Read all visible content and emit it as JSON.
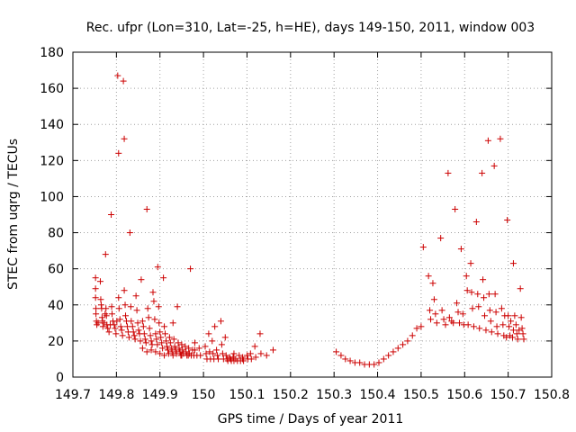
{
  "chart_data": {
    "type": "scatter",
    "title": "Rec. ufpr (Lon=310, Lat=-25, h=HE), days 149-150, 2011, window 003",
    "xlabel": "GPS time / Days of year 2011",
    "ylabel": "STEC from uqrg / TECUs",
    "xlim": [
      149.7,
      150.8
    ],
    "ylim": [
      0,
      180
    ],
    "xticks": [
      149.7,
      149.8,
      149.9,
      150,
      150.1,
      150.2,
      150.3,
      150.4,
      150.5,
      150.6,
      150.7,
      150.8
    ],
    "xtick_labels": [
      "149.7",
      "149.8",
      "149.9",
      "150",
      "150.1",
      "150.2",
      "150.3",
      "150.4",
      "150.5",
      "150.6",
      "150.7",
      "150.8"
    ],
    "yticks": [
      0,
      20,
      40,
      60,
      80,
      100,
      120,
      140,
      160,
      180
    ],
    "ytick_labels": [
      "0",
      "20",
      "40",
      "60",
      "80",
      "100",
      "120",
      "140",
      "160",
      "180"
    ],
    "grid": true,
    "marker": "+",
    "color": "#cc0000",
    "series": [
      {
        "name": "STEC",
        "points": [
          [
            149.752,
            55
          ],
          [
            149.752,
            49
          ],
          [
            149.752,
            44
          ],
          [
            149.753,
            38
          ],
          [
            149.753,
            35
          ],
          [
            149.754,
            31
          ],
          [
            149.755,
            29
          ],
          [
            149.758,
            30
          ],
          [
            149.763,
            53
          ],
          [
            149.764,
            43
          ],
          [
            149.765,
            40
          ],
          [
            149.766,
            38
          ],
          [
            149.767,
            33
          ],
          [
            149.768,
            31
          ],
          [
            149.769,
            28
          ],
          [
            149.772,
            30
          ],
          [
            149.774,
            35
          ],
          [
            149.775,
            68
          ],
          [
            149.776,
            38
          ],
          [
            149.777,
            34
          ],
          [
            149.778,
            29
          ],
          [
            149.78,
            27
          ],
          [
            149.783,
            25
          ],
          [
            149.786,
            29
          ],
          [
            149.788,
            90
          ],
          [
            149.789,
            39
          ],
          [
            149.79,
            35
          ],
          [
            149.792,
            31
          ],
          [
            149.795,
            29
          ],
          [
            149.797,
            27
          ],
          [
            149.799,
            24
          ],
          [
            149.801,
            31
          ],
          [
            149.803,
            167
          ],
          [
            149.805,
            124
          ],
          [
            149.805,
            44
          ],
          [
            149.806,
            38
          ],
          [
            149.808,
            32
          ],
          [
            149.81,
            28
          ],
          [
            149.812,
            26
          ],
          [
            149.814,
            23
          ],
          [
            149.816,
            164
          ],
          [
            149.818,
            132
          ],
          [
            149.818,
            48
          ],
          [
            149.82,
            40
          ],
          [
            149.821,
            34
          ],
          [
            149.823,
            31
          ],
          [
            149.825,
            28
          ],
          [
            149.827,
            25
          ],
          [
            149.829,
            22
          ],
          [
            149.831,
            80
          ],
          [
            149.833,
            39
          ],
          [
            149.834,
            31
          ],
          [
            149.837,
            28
          ],
          [
            149.839,
            25
          ],
          [
            149.841,
            23
          ],
          [
            149.843,
            21
          ],
          [
            149.845,
            45
          ],
          [
            149.847,
            37
          ],
          [
            149.849,
            30
          ],
          [
            149.851,
            26
          ],
          [
            149.853,
            24
          ],
          [
            149.855,
            20
          ],
          [
            149.857,
            54
          ],
          [
            149.86,
            31
          ],
          [
            149.862,
            28
          ],
          [
            149.864,
            24
          ],
          [
            149.866,
            21
          ],
          [
            149.868,
            19
          ],
          [
            149.87,
            93
          ],
          [
            149.872,
            38
          ],
          [
            149.874,
            33
          ],
          [
            149.876,
            27
          ],
          [
            149.878,
            23
          ],
          [
            149.88,
            20
          ],
          [
            149.882,
            18
          ],
          [
            149.884,
            47
          ],
          [
            149.886,
            42
          ],
          [
            149.888,
            32
          ],
          [
            149.89,
            24
          ],
          [
            149.892,
            21
          ],
          [
            149.894,
            18
          ],
          [
            149.895,
            61
          ],
          [
            149.897,
            39
          ],
          [
            149.898,
            30
          ],
          [
            149.9,
            25
          ],
          [
            149.902,
            22
          ],
          [
            149.904,
            19
          ],
          [
            149.906,
            16
          ],
          [
            149.908,
            55
          ],
          [
            149.91,
            28
          ],
          [
            149.912,
            24
          ],
          [
            149.914,
            20
          ],
          [
            149.916,
            17
          ],
          [
            149.918,
            15
          ],
          [
            149.92,
            13
          ],
          [
            149.922,
            22
          ],
          [
            149.924,
            19
          ],
          [
            149.926,
            16
          ],
          [
            149.928,
            14
          ],
          [
            149.93,
            30
          ],
          [
            149.932,
            21
          ],
          [
            149.934,
            17
          ],
          [
            149.936,
            15
          ],
          [
            149.938,
            13
          ],
          [
            149.94,
            39
          ],
          [
            149.942,
            19
          ],
          [
            149.944,
            16
          ],
          [
            149.946,
            14
          ],
          [
            149.948,
            12
          ],
          [
            149.95,
            18
          ],
          [
            149.952,
            15
          ],
          [
            149.954,
            13
          ],
          [
            149.958,
            17
          ],
          [
            149.96,
            14
          ],
          [
            149.962,
            12
          ],
          [
            149.966,
            16
          ],
          [
            149.968,
            13
          ],
          [
            149.97,
            60
          ],
          [
            149.972,
            12
          ],
          [
            149.975,
            15
          ],
          [
            149.978,
            12
          ],
          [
            149.98,
            19
          ],
          [
            149.98,
            15
          ],
          [
            149.985,
            12
          ],
          [
            149.99,
            16
          ],
          [
            149.993,
            12
          ],
          [
            149.86,
            16
          ],
          [
            149.87,
            14
          ],
          [
            149.88,
            15
          ],
          [
            149.89,
            14
          ],
          [
            149.9,
            13
          ],
          [
            149.91,
            12
          ],
          [
            149.93,
            12
          ],
          [
            149.95,
            12
          ],
          [
            149.965,
            12
          ],
          [
            150.004,
            17
          ],
          [
            150.006,
            13
          ],
          [
            150.008,
            10
          ],
          [
            150.012,
            24
          ],
          [
            150.014,
            14
          ],
          [
            150.016,
            10
          ],
          [
            150.02,
            20
          ],
          [
            150.022,
            13
          ],
          [
            150.024,
            10
          ],
          [
            150.026,
            28
          ],
          [
            150.03,
            15
          ],
          [
            150.032,
            12
          ],
          [
            150.034,
            10
          ],
          [
            150.04,
            31
          ],
          [
            150.042,
            18
          ],
          [
            150.044,
            13
          ],
          [
            150.046,
            10
          ],
          [
            150.05,
            22
          ],
          [
            150.052,
            12
          ],
          [
            150.054,
            10
          ],
          [
            150.056,
            9
          ],
          [
            150.06,
            11
          ],
          [
            150.062,
            10
          ],
          [
            150.064,
            9
          ],
          [
            150.068,
            11
          ],
          [
            150.07,
            9
          ],
          [
            150.074,
            10
          ],
          [
            150.078,
            9
          ],
          [
            150.082,
            12
          ],
          [
            150.085,
            9
          ],
          [
            150.09,
            11
          ],
          [
            150.092,
            9
          ],
          [
            150.1,
            12
          ],
          [
            150.102,
            10
          ],
          [
            150.108,
            13
          ],
          [
            150.11,
            10
          ],
          [
            150.118,
            17
          ],
          [
            150.12,
            11
          ],
          [
            150.13,
            24
          ],
          [
            150.132,
            13
          ],
          [
            150.145,
            12
          ],
          [
            150.16,
            15
          ],
          [
            150.07,
            13
          ],
          [
            150.09,
            10
          ],
          [
            150.305,
            14
          ],
          [
            150.316,
            12
          ],
          [
            150.326,
            10
          ],
          [
            150.337,
            9
          ],
          [
            150.348,
            8
          ],
          [
            150.359,
            8
          ],
          [
            150.37,
            7
          ],
          [
            150.381,
            7
          ],
          [
            150.392,
            7
          ],
          [
            150.403,
            8
          ],
          [
            150.414,
            10
          ],
          [
            150.425,
            12
          ],
          [
            150.436,
            14
          ],
          [
            150.447,
            16
          ],
          [
            150.458,
            18
          ],
          [
            150.469,
            20
          ],
          [
            150.48,
            23
          ],
          [
            150.49,
            27
          ],
          [
            150.5,
            28
          ],
          [
            150.505,
            72
          ],
          [
            150.517,
            56
          ],
          [
            150.52,
            37
          ],
          [
            150.522,
            32
          ],
          [
            150.527,
            52
          ],
          [
            150.53,
            43
          ],
          [
            150.533,
            35
          ],
          [
            150.536,
            30
          ],
          [
            150.545,
            77
          ],
          [
            150.548,
            37
          ],
          [
            150.552,
            32
          ],
          [
            150.556,
            29
          ],
          [
            150.562,
            113
          ],
          [
            150.565,
            33
          ],
          [
            150.57,
            31
          ],
          [
            150.574,
            30
          ],
          [
            150.578,
            93
          ],
          [
            150.582,
            41
          ],
          [
            150.585,
            36
          ],
          [
            150.588,
            30
          ],
          [
            150.592,
            71
          ],
          [
            150.596,
            35
          ],
          [
            150.598,
            29
          ],
          [
            150.604,
            56
          ],
          [
            150.606,
            48
          ],
          [
            150.608,
            29
          ],
          [
            150.614,
            63
          ],
          [
            150.616,
            47
          ],
          [
            150.618,
            38
          ],
          [
            150.621,
            28
          ],
          [
            150.627,
            86
          ],
          [
            150.63,
            46
          ],
          [
            150.632,
            39
          ],
          [
            150.634,
            27
          ],
          [
            150.64,
            113
          ],
          [
            150.642,
            54
          ],
          [
            150.644,
            44
          ],
          [
            150.646,
            34
          ],
          [
            150.649,
            26
          ],
          [
            150.654,
            131
          ],
          [
            150.656,
            46
          ],
          [
            150.658,
            37
          ],
          [
            150.66,
            31
          ],
          [
            150.662,
            25
          ],
          [
            150.668,
            117
          ],
          [
            150.67,
            46
          ],
          [
            150.672,
            36
          ],
          [
            150.674,
            28
          ],
          [
            150.676,
            24
          ],
          [
            150.682,
            132
          ],
          [
            150.685,
            38
          ],
          [
            150.688,
            29
          ],
          [
            150.69,
            23
          ],
          [
            150.698,
            87
          ],
          [
            150.7,
            34
          ],
          [
            150.702,
            28
          ],
          [
            150.704,
            23
          ],
          [
            150.712,
            63
          ],
          [
            150.715,
            34
          ],
          [
            150.718,
            29
          ],
          [
            150.72,
            24
          ],
          [
            150.722,
            21
          ],
          [
            150.728,
            49
          ],
          [
            150.73,
            33
          ],
          [
            150.732,
            27
          ],
          [
            150.734,
            24
          ],
          [
            150.736,
            21
          ],
          [
            150.692,
            34
          ],
          [
            150.706,
            31
          ],
          [
            150.696,
            22
          ],
          [
            150.71,
            22
          ],
          [
            150.712,
            26
          ],
          [
            150.725,
            26
          ]
        ]
      }
    ]
  }
}
